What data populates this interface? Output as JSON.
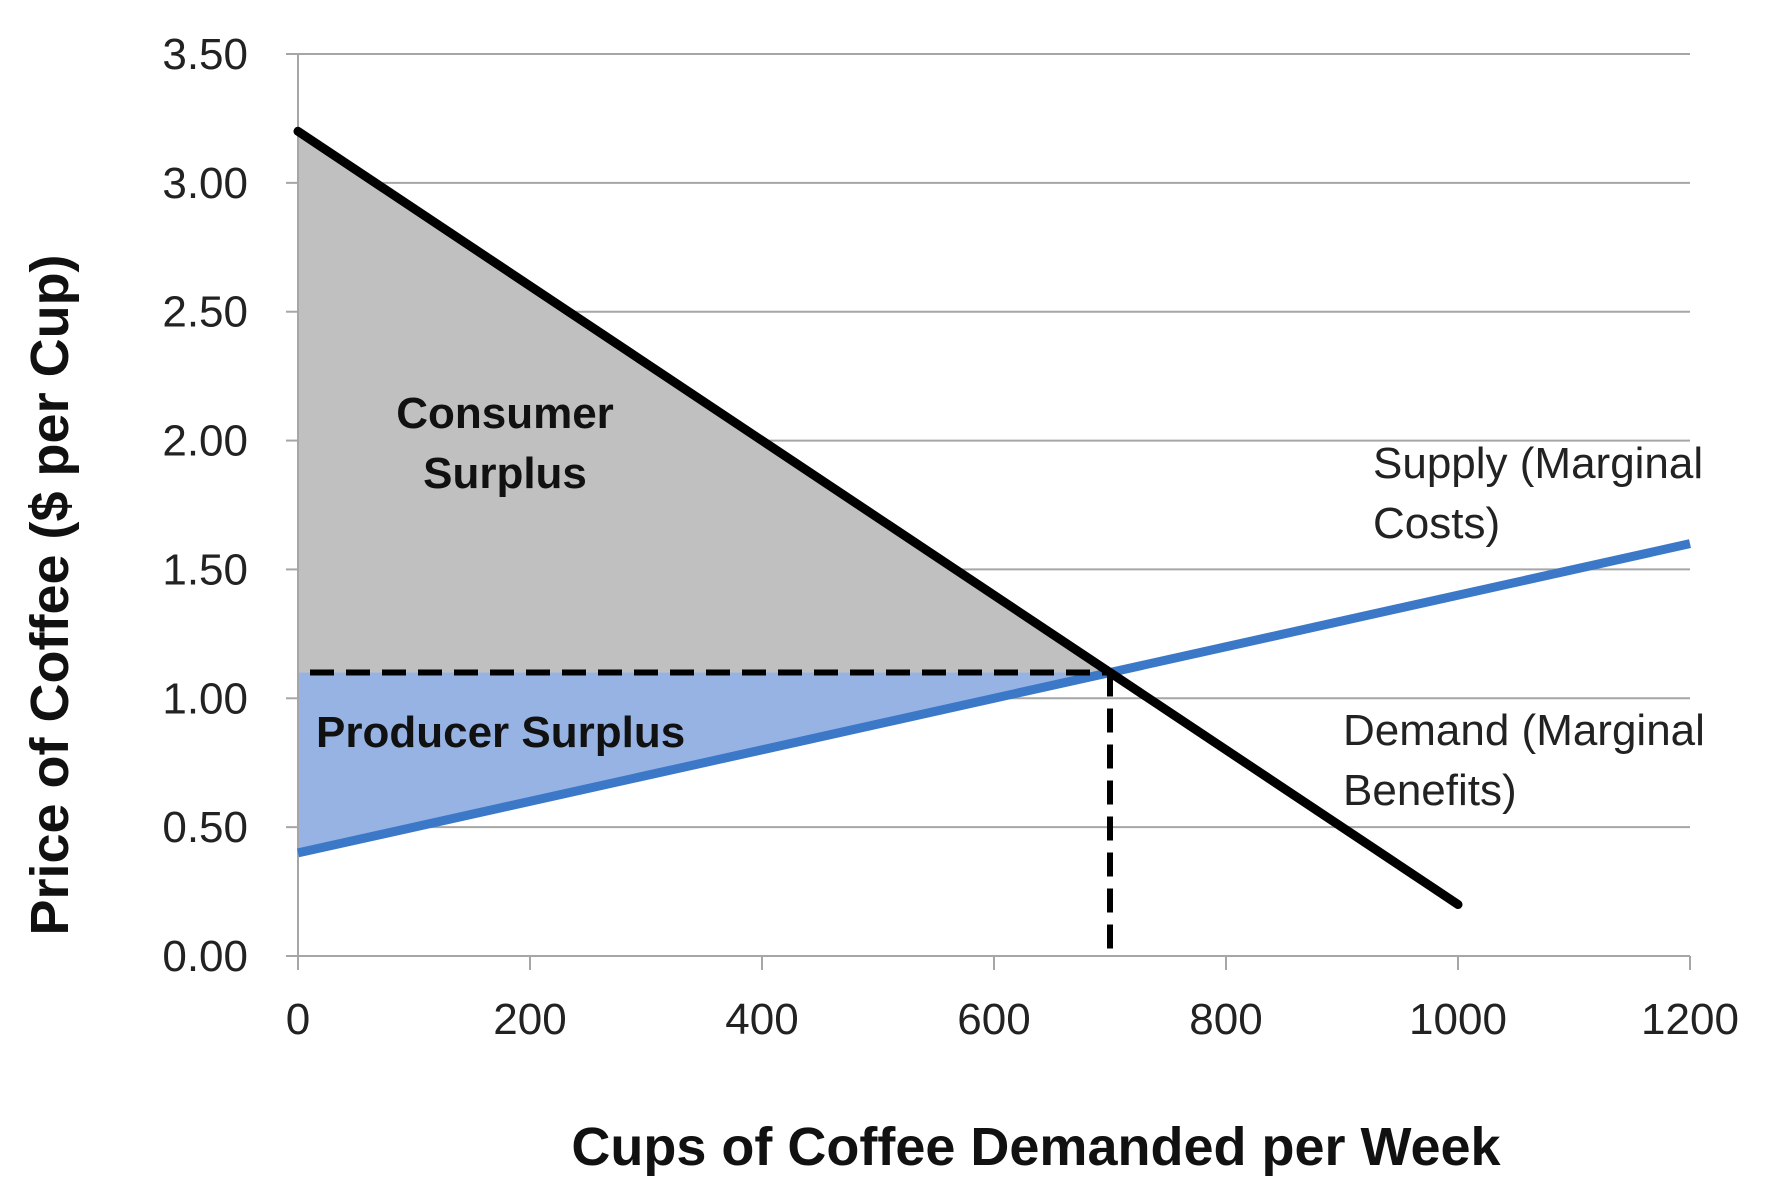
{
  "chart_data": {
    "type": "line",
    "xlabel": "Cups of Coffee Demanded per Week",
    "ylabel": "Price of Coffee ($ per Cup)",
    "xlim": [
      0,
      1200
    ],
    "ylim": [
      0,
      3.5
    ],
    "x_ticks": [
      "0",
      "200",
      "400",
      "600",
      "800",
      "1000",
      "1200"
    ],
    "y_ticks": [
      "0.00",
      "0.50",
      "1.00",
      "1.50",
      "2.00",
      "2.50",
      "3.00",
      "3.50"
    ],
    "grid": "horizontal",
    "series": [
      {
        "name": "Demand (Marginal Benefits)",
        "color": "#000000",
        "x": [
          0,
          1000
        ],
        "y": [
          3.2,
          0.2
        ]
      },
      {
        "name": "Supply (Marginal Costs)",
        "color": "#3c78c8",
        "x": [
          0,
          1200
        ],
        "y": [
          0.4,
          1.6
        ]
      }
    ],
    "equilibrium": {
      "x": 700,
      "y": 1.1
    },
    "regions": [
      {
        "label": "Consumer Surplus",
        "color": "#c0c0c0"
      },
      {
        "label": "Producer Surplus",
        "color": "#97b3e3"
      }
    ],
    "annotations": {
      "consumer_line1": "Consumer",
      "consumer_line2": "Surplus",
      "producer": "Producer Surplus",
      "supply_line1": "Supply (Marginal",
      "supply_line2": "Costs)",
      "demand_line1": "Demand  (Marginal",
      "demand_line2": "Benefits)"
    }
  }
}
